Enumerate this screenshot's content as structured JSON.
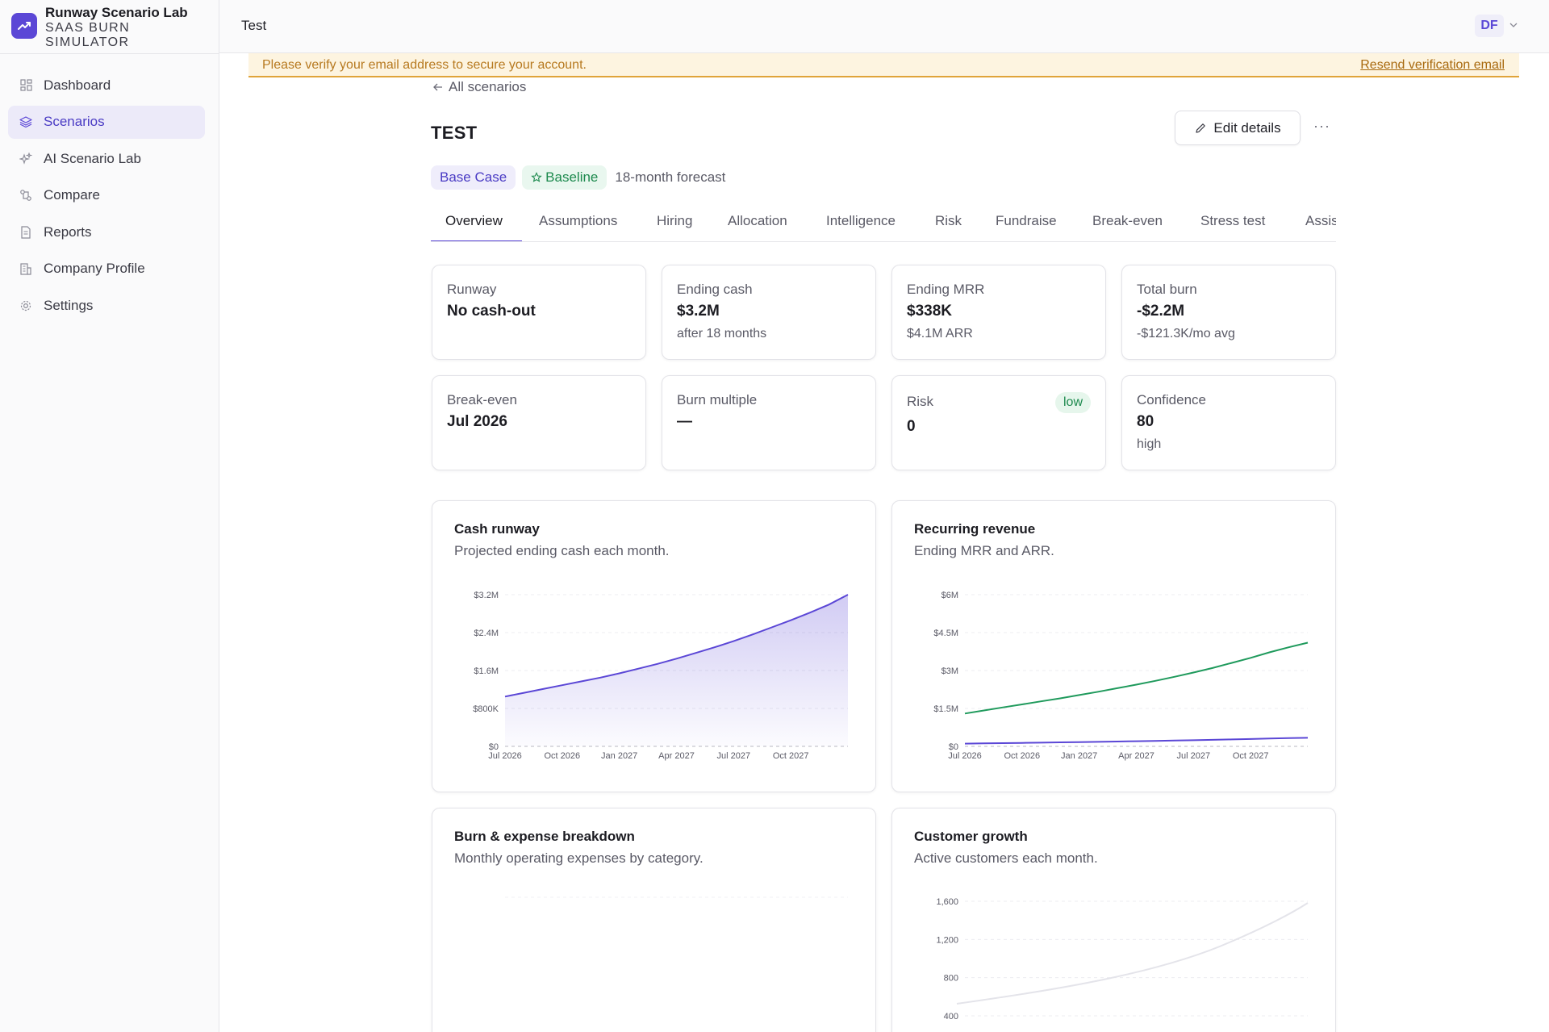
{
  "brand": {
    "title": "Runway Scenario Lab",
    "subtitle": "SAAS BURN SIMULATOR",
    "accent": "#5b47d6"
  },
  "sidebar": {
    "items": [
      {
        "label": "Dashboard",
        "icon": "grid-icon",
        "active": false
      },
      {
        "label": "Scenarios",
        "icon": "layers-icon",
        "active": true
      },
      {
        "label": "AI Scenario Lab",
        "icon": "sparkles-icon",
        "active": false
      },
      {
        "label": "Compare",
        "icon": "compare-icon",
        "active": false
      },
      {
        "label": "Reports",
        "icon": "document-icon",
        "active": false
      },
      {
        "label": "Company Profile",
        "icon": "building-icon",
        "active": false
      },
      {
        "label": "Settings",
        "icon": "gear-icon",
        "active": false
      }
    ]
  },
  "topbar": {
    "title": "Test",
    "avatar_initials": "DF"
  },
  "banner": {
    "message": "Please verify your email address to secure your account.",
    "link": "Resend verification email"
  },
  "scenario": {
    "back_label": "All scenarios",
    "title": "TEST",
    "edit_label": "Edit details",
    "more_label": "···",
    "badge_case": "Base Case",
    "badge_baseline": "Baseline",
    "forecast_note": "18-month forecast"
  },
  "tabs": [
    "Overview",
    "Assumptions",
    "Hiring",
    "Allocation",
    "Intelligence",
    "Risk",
    "Fundraise",
    "Break-even",
    "Stress test",
    "Assis"
  ],
  "stats": {
    "runway": {
      "label": "Runway",
      "value": "No cash-out"
    },
    "ending_cash": {
      "label": "Ending cash",
      "value": "$3.2M",
      "sub": "after 18 months"
    },
    "ending_mrr": {
      "label": "Ending MRR",
      "value": "$338K",
      "sub": "$4.1M ARR"
    },
    "total_burn": {
      "label": "Total burn",
      "value": "-$2.2M",
      "sub": "-$121.3K/mo avg"
    },
    "break_even": {
      "label": "Break-even",
      "value": "Jul 2026"
    },
    "burn_multiple": {
      "label": "Burn multiple",
      "value": "—"
    },
    "risk": {
      "label": "Risk",
      "value": "0",
      "pill": "low"
    },
    "confidence": {
      "label": "Confidence",
      "value": "80",
      "sub": "high"
    }
  },
  "charts": {
    "cash": {
      "title": "Cash runway",
      "subtitle": "Projected ending cash each month."
    },
    "revenue": {
      "title": "Recurring revenue",
      "subtitle": "Ending MRR and ARR."
    },
    "burn": {
      "title": "Burn & expense breakdown",
      "subtitle": "Monthly operating expenses by category."
    },
    "customers": {
      "title": "Customer growth",
      "subtitle": "Active customers each month."
    }
  },
  "chart_data": [
    {
      "type": "area",
      "title": "Cash runway",
      "subtitle": "Projected ending cash each month.",
      "x_ticks": [
        "Jul 2026",
        "Oct 2026",
        "Jan 2027",
        "Apr 2027",
        "Jul 2027",
        "Oct 2027"
      ],
      "y_ticks": [
        "$0",
        "$800K",
        "$1.6M",
        "$2.4M",
        "$3.2M"
      ],
      "ylim": [
        0,
        3200000
      ],
      "series": [
        {
          "values": [
            1050000,
            1130000,
            1210000,
            1290000,
            1370000,
            1450000,
            1540000,
            1640000,
            1740000,
            1850000,
            1970000,
            2090000,
            2220000,
            2360000,
            2510000,
            2660000,
            2820000,
            2990000,
            3200000
          ],
          "color": "#5b47d6"
        }
      ],
      "grid": true
    },
    {
      "type": "line",
      "title": "Recurring revenue",
      "subtitle": "Ending MRR and ARR.",
      "x_ticks": [
        "Jul 2026",
        "Oct 2026",
        "Jan 2027",
        "Apr 2027",
        "Jul 2027",
        "Oct 2027"
      ],
      "y_ticks": [
        "$0",
        "$1.5M",
        "$3M",
        "$4.5M",
        "$6M"
      ],
      "ylim": [
        0,
        6000000
      ],
      "series": [
        {
          "name": "",
          "values": [
            1300000,
            1420000,
            1540000,
            1660000,
            1780000,
            1900000,
            2030000,
            2160000,
            2300000,
            2440000,
            2590000,
            2750000,
            2920000,
            3100000,
            3300000,
            3500000,
            3720000,
            3920000,
            4100000
          ],
          "color": "#1f9a5c"
        },
        {
          "name": "",
          "values": [
            108000,
            118000,
            128000,
            138000,
            148000,
            158000,
            169000,
            180000,
            192000,
            203000,
            216000,
            229000,
            243000,
            258000,
            275000,
            292000,
            310000,
            326000,
            338000
          ],
          "color": "#5b47d6"
        }
      ],
      "grid": true
    },
    {
      "type": "bar",
      "title": "Burn & expense breakdown",
      "subtitle": "Monthly operating expenses by category.",
      "grid": true
    },
    {
      "type": "line",
      "title": "Customer growth",
      "subtitle": "Active customers each month.",
      "y_ticks": [
        "400",
        "800",
        "1,200",
        "1,600"
      ],
      "grid": true
    }
  ]
}
